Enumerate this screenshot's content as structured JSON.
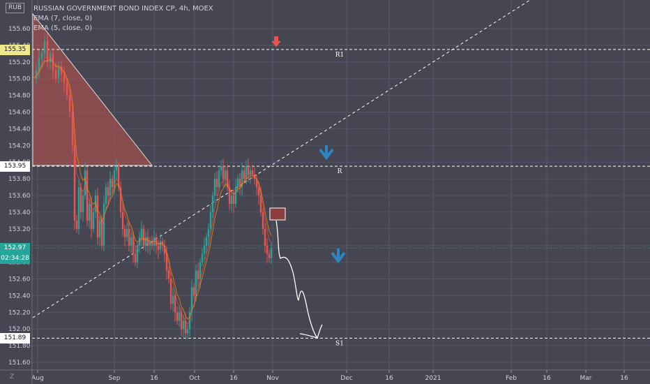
{
  "symbol": {
    "title": "RUSSIAN GOVERNMENT BOND INDEX CP, 4h, MOEX",
    "currency": "RUB",
    "indicators": [
      "EMA (7, close, 0)",
      "EMA (5, close, 0)"
    ]
  },
  "price_axis": {
    "ticks": [
      "155.60",
      "155.40",
      "155.20",
      "155.00",
      "154.80",
      "154.60",
      "154.40",
      "154.20",
      "154.00",
      "153.80",
      "153.60",
      "153.40",
      "153.20",
      "153.00",
      "152.80",
      "152.60",
      "152.40",
      "152.20",
      "152.00",
      "151.80",
      "151.60"
    ],
    "badges": [
      {
        "label": "155.35",
        "kind": "level",
        "color": "#f0e68c",
        "text_color": "#131722"
      },
      {
        "label": "153.95",
        "kind": "level",
        "color": "#ffffff",
        "text_color": "#131722"
      },
      {
        "label": "152.97",
        "kind": "last",
        "color": "#26a69a",
        "text_color": "#ffffff"
      },
      {
        "label": "02:34:28",
        "kind": "countdown",
        "color": "#26a69a",
        "text_color": "#ffffff"
      },
      {
        "label": "151.89",
        "kind": "level",
        "color": "#ffffff",
        "text_color": "#131722"
      }
    ]
  },
  "time_axis": {
    "ticks": [
      "Aug",
      "Sep",
      "16",
      "Oct",
      "16",
      "Nov",
      "Dec",
      "16",
      "2021",
      "Feb",
      "16",
      "Mar",
      "16"
    ],
    "corner_label": "Z"
  },
  "levels": [
    {
      "label": "R1",
      "price": 155.35
    },
    {
      "label": "R",
      "price": 153.95
    },
    {
      "label": "S1",
      "price": 151.89
    }
  ],
  "colors": {
    "background": "#454651",
    "grid": "#55566a",
    "up": "#26a69a",
    "down": "#ef5350",
    "arrow_blue": "#2e86c1",
    "arrow_red": "#ef5350",
    "triangle_fill": "#c0504d"
  }
}
